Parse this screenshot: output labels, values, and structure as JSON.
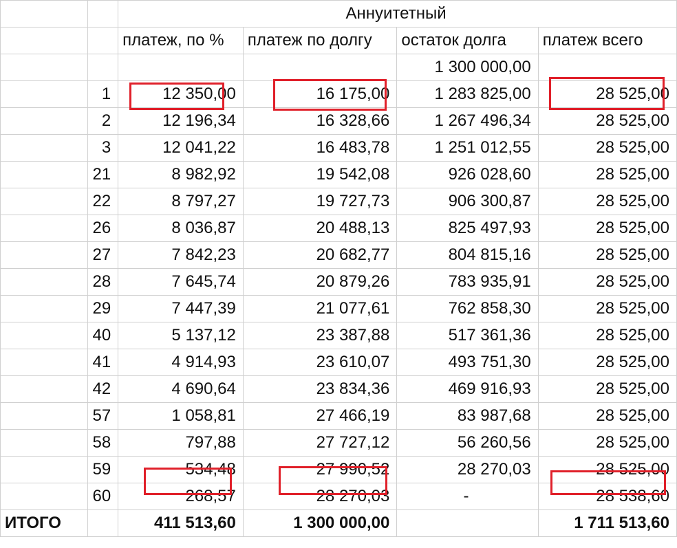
{
  "title": "Аннуитетный",
  "headers": [
    "платеж, по %",
    "платеж по долгу",
    "остаток долга",
    "платеж всего"
  ],
  "initial_balance": "1 300 000,00",
  "rows": [
    {
      "n": "1",
      "interest": "12 350,00",
      "principal": "16 175,00",
      "balance": "1 283 825,00",
      "total": "28 525,00"
    },
    {
      "n": "2",
      "interest": "12 196,34",
      "principal": "16 328,66",
      "balance": "1 267 496,34",
      "total": "28 525,00"
    },
    {
      "n": "3",
      "interest": "12 041,22",
      "principal": "16 483,78",
      "balance": "1 251 012,55",
      "total": "28 525,00"
    },
    {
      "n": "21",
      "interest": "8 982,92",
      "principal": "19 542,08",
      "balance": "926 028,60",
      "total": "28 525,00"
    },
    {
      "n": "22",
      "interest": "8 797,27",
      "principal": "19 727,73",
      "balance": "906 300,87",
      "total": "28 525,00"
    },
    {
      "n": "26",
      "interest": "8 036,87",
      "principal": "20 488,13",
      "balance": "825 497,93",
      "total": "28 525,00"
    },
    {
      "n": "27",
      "interest": "7 842,23",
      "principal": "20 682,77",
      "balance": "804 815,16",
      "total": "28 525,00"
    },
    {
      "n": "28",
      "interest": "7 645,74",
      "principal": "20 879,26",
      "balance": "783 935,91",
      "total": "28 525,00"
    },
    {
      "n": "29",
      "interest": "7 447,39",
      "principal": "21 077,61",
      "balance": "762 858,30",
      "total": "28 525,00"
    },
    {
      "n": "40",
      "interest": "5 137,12",
      "principal": "23 387,88",
      "balance": "517 361,36",
      "total": "28 525,00"
    },
    {
      "n": "41",
      "interest": "4 914,93",
      "principal": "23 610,07",
      "balance": "493 751,30",
      "total": "28 525,00"
    },
    {
      "n": "42",
      "interest": "4 690,64",
      "principal": "23 834,36",
      "balance": "469 916,93",
      "total": "28 525,00"
    },
    {
      "n": "57",
      "interest": "1 058,81",
      "principal": "27 466,19",
      "balance": "83 987,68",
      "total": "28 525,00"
    },
    {
      "n": "58",
      "interest": "797,88",
      "principal": "27 727,12",
      "balance": "56 260,56",
      "total": "28 525,00"
    },
    {
      "n": "59",
      "interest": "534,48",
      "principal": "27 990,52",
      "balance": "28 270,03",
      "total": "28 525,00"
    },
    {
      "n": "60",
      "interest": "268,57",
      "principal": "28 270,03",
      "balance": "-",
      "total": "28 538,60"
    }
  ],
  "totals": {
    "label": "ИТОГО",
    "interest": "411 513,60",
    "principal": "1 300 000,00",
    "total": "1 711 513,60"
  },
  "highlight_color": "#e0202a"
}
